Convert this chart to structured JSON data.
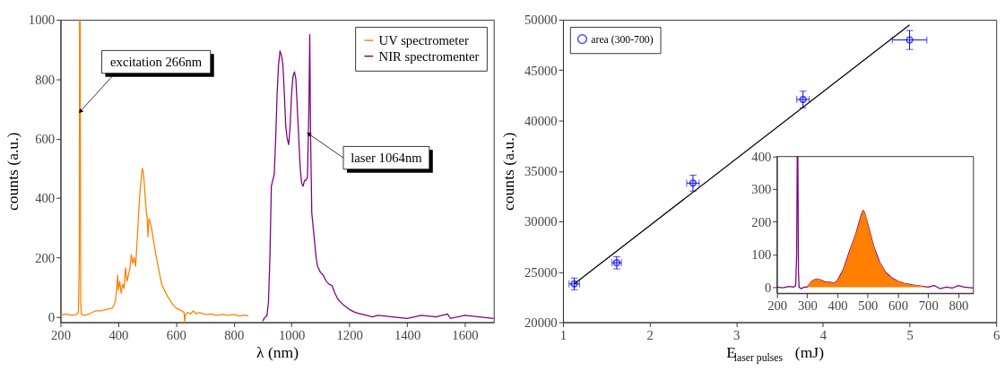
{
  "chart_data": [
    {
      "type": "line",
      "xlabel": "λ (nm)",
      "ylabel": "counts (a.u.)",
      "xlim": [
        200,
        1700
      ],
      "xticks": [
        200,
        400,
        600,
        800,
        1000,
        1200,
        1400,
        1600
      ],
      "ylim": [
        -18,
        1000
      ],
      "yticks": [
        0,
        200,
        400,
        600,
        800,
        1000
      ],
      "legend": "top right",
      "line_style": "solid",
      "series": [
        {
          "name": "UV spectrometer",
          "color": "#ff8000",
          "x": [
            200,
            220,
            240,
            255,
            262,
            265,
            266,
            268,
            270,
            272,
            280,
            300,
            320,
            340,
            360,
            380,
            390,
            395,
            398,
            400,
            405,
            410,
            415,
            420,
            425,
            430,
            440,
            445,
            450,
            455,
            460,
            465,
            470,
            475,
            480,
            483,
            486,
            490,
            495,
            500,
            503,
            506,
            510,
            515,
            520,
            530,
            540,
            550,
            560,
            570,
            580,
            590,
            600,
            610,
            620,
            628,
            630,
            632,
            640,
            650,
            660,
            670,
            680,
            700,
            720,
            740,
            760,
            780,
            800,
            820,
            840,
            850
          ],
          "values": [
            5,
            10,
            5,
            8,
            15,
            200,
            1000,
            1000,
            50,
            10,
            5,
            10,
            20,
            20,
            25,
            30,
            50,
            100,
            140,
            90,
            120,
            80,
            110,
            95,
            165,
            120,
            160,
            210,
            180,
            200,
            170,
            250,
            340,
            420,
            470,
            500,
            490,
            450,
            380,
            330,
            270,
            330,
            320,
            300,
            270,
            210,
            160,
            110,
            90,
            70,
            55,
            40,
            30,
            25,
            20,
            15,
            -18,
            5,
            15,
            10,
            20,
            10,
            15,
            8,
            10,
            5,
            8,
            5,
            8,
            3,
            6,
            3
          ]
        },
        {
          "name": "NIR spectromenter",
          "color": "#800080",
          "x": [
            900,
            905,
            910,
            915,
            920,
            925,
            930,
            935,
            940,
            945,
            950,
            955,
            960,
            965,
            970,
            975,
            980,
            985,
            990,
            995,
            1000,
            1005,
            1010,
            1015,
            1020,
            1025,
            1030,
            1035,
            1040,
            1045,
            1050,
            1055,
            1060,
            1063,
            1066,
            1070,
            1075,
            1080,
            1085,
            1090,
            1100,
            1110,
            1120,
            1130,
            1140,
            1150,
            1160,
            1170,
            1180,
            1200,
            1220,
            1240,
            1260,
            1280,
            1300,
            1350,
            1400,
            1450,
            1500,
            1540,
            1550,
            1600,
            1650,
            1700
          ],
          "values": [
            -15,
            -5,
            0,
            5,
            50,
            200,
            440,
            460,
            480,
            600,
            750,
            850,
            895,
            880,
            850,
            750,
            640,
            600,
            580,
            640,
            750,
            810,
            825,
            800,
            700,
            600,
            500,
            450,
            440,
            460,
            460,
            470,
            700,
            950,
            600,
            350,
            300,
            250,
            200,
            170,
            150,
            140,
            120,
            110,
            105,
            80,
            60,
            50,
            40,
            25,
            15,
            10,
            5,
            0,
            5,
            0,
            -5,
            5,
            0,
            10,
            -5,
            5,
            0,
            -5
          ]
        }
      ],
      "annotations": [
        {
          "text": "excitation 266nm",
          "x": 270,
          "y": 693
        },
        {
          "text": "laser 1064nm",
          "x": 1061,
          "y": 615
        }
      ]
    },
    {
      "type": "scatter",
      "xlabel": "E$_{laser pulses}$ (mJ)",
      "ylabel": "counts (a.u.)",
      "xlim": [
        1,
        6
      ],
      "xticks": [
        1,
        2,
        3,
        4,
        5,
        6
      ],
      "ylim": [
        20000,
        50000
      ],
      "yticks": [
        20000,
        25000,
        30000,
        35000,
        40000,
        45000,
        50000
      ],
      "legend": "top left",
      "marker": "circle",
      "series": [
        {
          "name": "area (300-700)",
          "color": "#0000ff",
          "x": [
            1.13,
            1.62,
            2.5,
            3.77,
            5.0
          ],
          "values": [
            23800,
            25900,
            33800,
            42100,
            48000
          ],
          "errors": [
            580,
            610,
            790,
            820,
            940
          ],
          "xerrors": [
            0.06,
            0.054,
            0.072,
            0.072,
            0.2
          ]
        },
        {
          "type": "line",
          "marker": "none",
          "color": "#000000",
          "x": [
            1.13,
            5.0
          ],
          "values": [
            23800,
            49500
          ]
        }
      ]
    },
    {
      "type": "line",
      "xlim": [
        200,
        850
      ],
      "xticks": [
        200,
        300,
        400,
        500,
        600,
        700,
        800
      ],
      "ylim": [
        -19,
        400
      ],
      "yticks": [
        0,
        100,
        200,
        300,
        400
      ],
      "series": [
        {
          "color": "#800080",
          "x": [
            200,
            220,
            240,
            255,
            262,
            265,
            267,
            269,
            271,
            273,
            280,
            290,
            300,
            315,
            330,
            345,
            360,
            375,
            390,
            400,
            420,
            440,
            460,
            480,
            485,
            490,
            500,
            520,
            540,
            560,
            580,
            600,
            620,
            640,
            660,
            680,
            700,
            720,
            740,
            760,
            780,
            800,
            820,
            850
          ],
          "values": [
            0,
            -2,
            2,
            0,
            5,
            100,
            400,
            400,
            50,
            0,
            -5,
            0,
            0,
            18,
            25,
            22,
            15,
            15,
            12,
            20,
            55,
            110,
            160,
            225,
            235,
            228,
            195,
            125,
            75,
            45,
            28,
            18,
            12,
            8,
            5,
            3,
            0,
            5,
            -5,
            0,
            -3,
            5,
            0,
            -3
          ]
        },
        {
          "type": "area",
          "color": "#ff8000",
          "x": [
            300,
            305,
            315,
            330,
            345,
            360,
            375,
            390,
            400,
            410,
            420,
            430,
            440,
            450,
            460,
            470,
            480,
            485,
            490,
            495,
            500,
            510,
            520,
            530,
            540,
            550,
            560,
            570,
            580,
            590,
            600,
            620,
            640,
            660,
            680,
            700
          ],
          "values": [
            0,
            10,
            18,
            25,
            22,
            15,
            15,
            12,
            20,
            35,
            55,
            80,
            110,
            135,
            160,
            190,
            225,
            235,
            228,
            215,
            195,
            160,
            125,
            95,
            75,
            60,
            45,
            35,
            28,
            22,
            18,
            12,
            8,
            5,
            3,
            0
          ]
        }
      ]
    }
  ]
}
